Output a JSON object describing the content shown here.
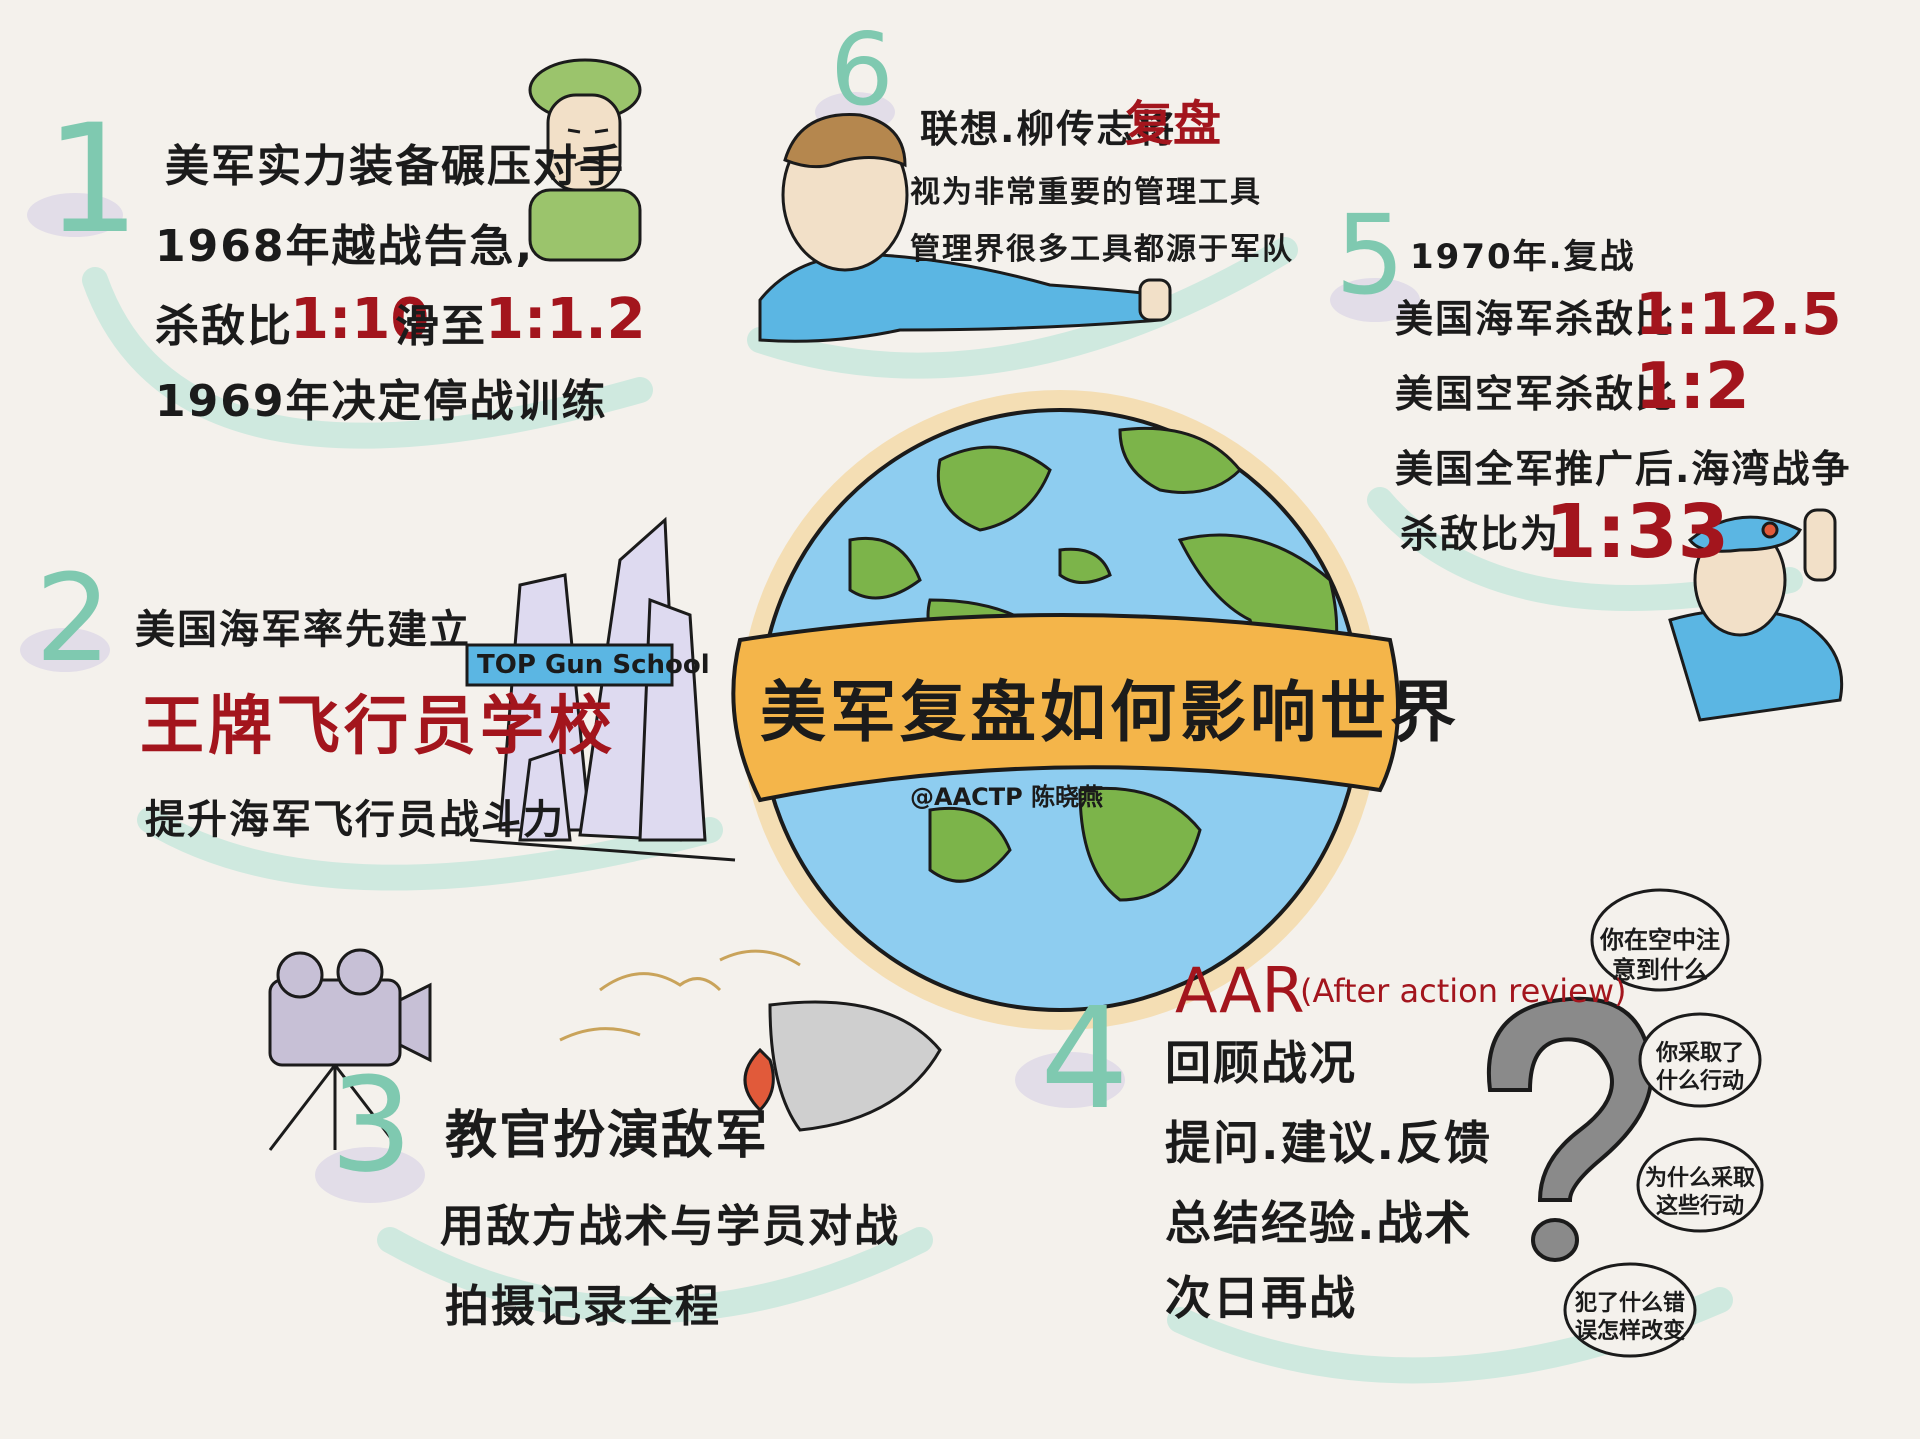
{
  "title": "美军复盘如何影响世界",
  "credit": "@AACTP 陈晓燕",
  "sections": {
    "s1": {
      "number": "1",
      "lines": [
        "美军实力装备碾压对手",
        "1968年越战告急,",
        "1969年决定停战训练"
      ],
      "ratio_prefix": "杀敌比",
      "ratio_from": "1:10",
      "ratio_mid": "滑至",
      "ratio_to": "1:1.2"
    },
    "s2": {
      "number": "2",
      "line1": "美国海军率先建立",
      "highlight": "王牌飞行员学校",
      "line3": "提升海军飞行员战斗力",
      "sign": "TOP Gun School"
    },
    "s3": {
      "number": "3",
      "line1": "教官扮演敌军",
      "line2": "用敌方战术与学员对战",
      "line3": "拍摄记录全程"
    },
    "s4": {
      "number": "4",
      "aar": "AAR",
      "aar_full": "(After action review)",
      "lines": [
        "回顾战况",
        "提问.建议.反馈",
        "总结经验.战术",
        "次日再战"
      ],
      "bubbles": [
        "你在空中注意到什么",
        "你采取了什么行动",
        "为什么采取这些行动",
        "犯了什么错误怎样改变"
      ]
    },
    "s5": {
      "number": "5",
      "year": "1970年.复战",
      "navy_label": "美国海军杀敌比",
      "navy_ratio": "1:12.5",
      "air_label": "美国空军杀敌比",
      "air_ratio": "1:2",
      "all_label": "美国全军推广后.海湾战争",
      "all_label2": "杀敌比为",
      "all_ratio": "1:33"
    },
    "s6": {
      "number": "6",
      "line1a": "联想.柳传志将",
      "line1b": "复盘",
      "line2": "视为非常重要的管理工具",
      "line3": "管理界很多工具都源于军队"
    }
  },
  "colors": {
    "mint": "#7fc9b0",
    "red": "#a3151d",
    "ocean": "#8ecdf0",
    "land": "#7cb44a",
    "banner": "#f4b54a"
  }
}
